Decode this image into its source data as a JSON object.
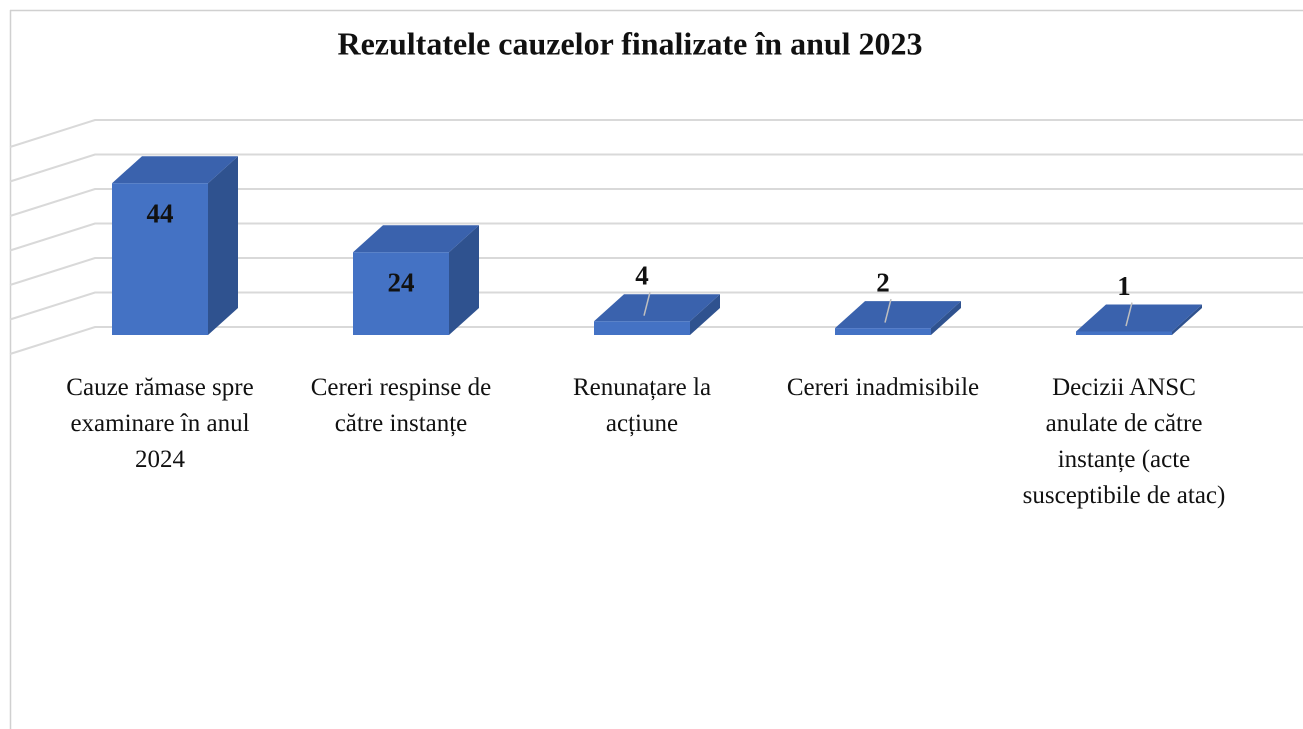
{
  "chart_data": {
    "type": "bar3d",
    "title": "Rezultatele cauzelor finalizate în anul 2023",
    "categories": [
      "Cauze rămase spre examinare în anul 2024",
      "Cereri respinse de către instanțe",
      "Renunațare la acțiune",
      "Cereri inadmisibile",
      "Decizii ANSC anulate de către instanțe (acte susceptibile de atac)"
    ],
    "values": [
      44,
      24,
      4,
      2,
      1
    ],
    "color": "#4472c4",
    "ylim": [
      0,
      60
    ],
    "yticks": [
      0,
      10,
      20,
      30,
      40,
      50,
      60
    ],
    "grid": true
  }
}
